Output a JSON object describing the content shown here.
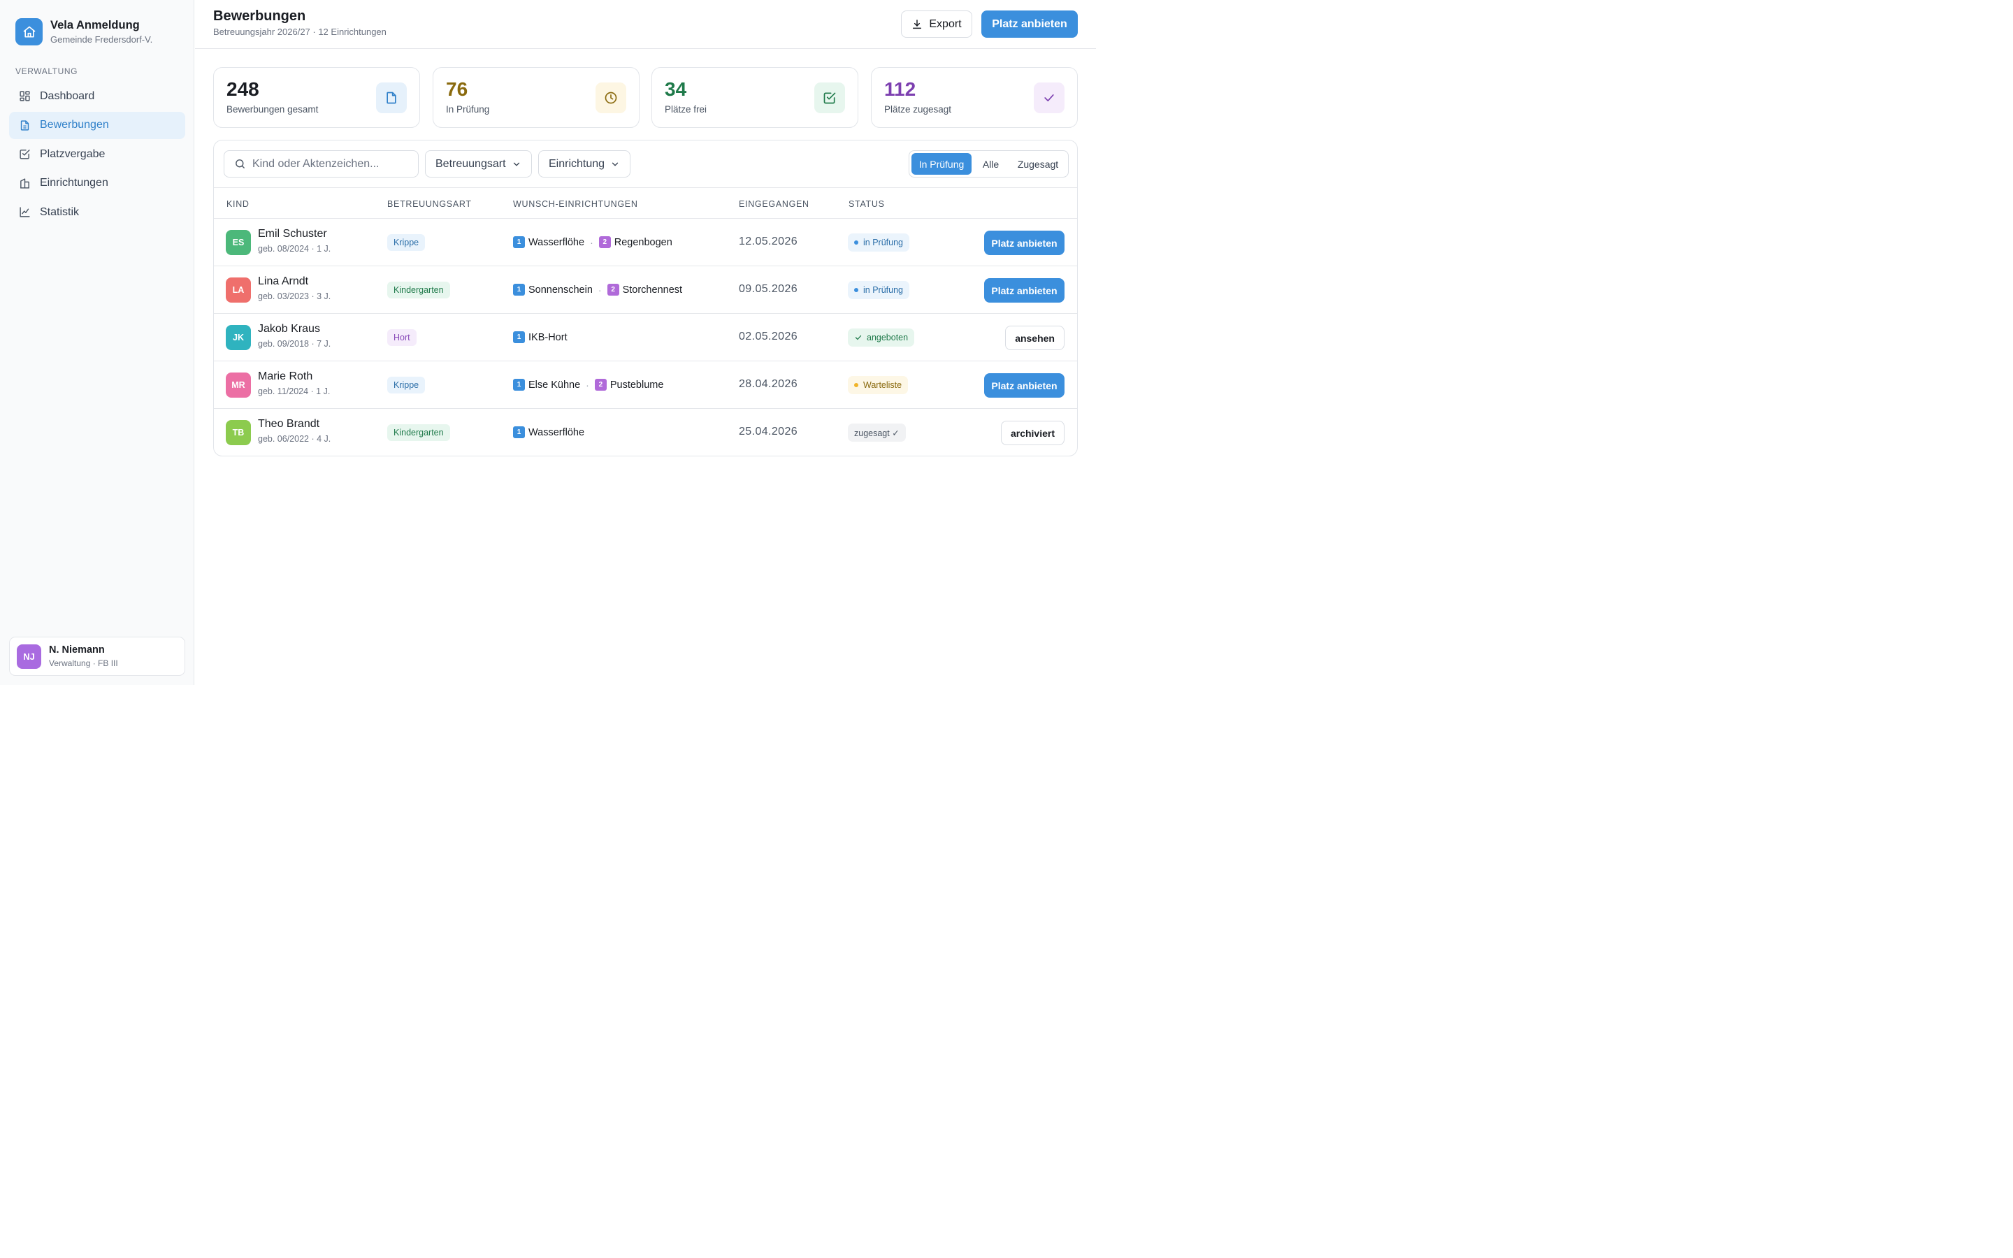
{
  "app": {
    "title": "Vela Anmeldung",
    "subtitle": "Gemeinde Fredersdorf-V.",
    "brand_color": "#3b8fdd"
  },
  "sidebar": {
    "section_label": "VERWALTUNG",
    "items": [
      {
        "label": "Dashboard",
        "icon": "dashboard-icon"
      },
      {
        "label": "Bewerbungen",
        "icon": "document-icon",
        "active": true
      },
      {
        "label": "Platzvergabe",
        "icon": "checkbox-icon"
      },
      {
        "label": "Einrichtungen",
        "icon": "building-icon"
      },
      {
        "label": "Statistik",
        "icon": "chart-icon"
      }
    ],
    "user": {
      "initials": "NJ",
      "name": "N. Niemann",
      "role": "Verwaltung · FB III"
    }
  },
  "header": {
    "title": "Bewerbungen",
    "subtitle": "Betreuungsjahr 2026/27 · 12 Einrichtungen",
    "export_label": "Export",
    "primary_label": "Platz anbieten"
  },
  "stats": [
    {
      "value": "248",
      "label": "Bewerbungen gesamt",
      "color": "#1a1d23",
      "icon": "document-icon"
    },
    {
      "value": "76",
      "label": "In Prüfung",
      "color": "#8a6a0e",
      "icon": "clock-icon"
    },
    {
      "value": "34",
      "label": "Plätze frei",
      "color": "#1f7a4a",
      "icon": "checkbox-icon"
    },
    {
      "value": "112",
      "label": "Plätze zugesagt",
      "color": "#7c3fb0",
      "icon": "check-icon"
    }
  ],
  "filters": {
    "search_placeholder": "Kind oder Aktenzeichen...",
    "dropdown_care": "Betreuungsart",
    "dropdown_facility": "Einrichtung",
    "segments": [
      "In Prüfung",
      "Alle",
      "Zugesagt"
    ],
    "active_segment": "In Prüfung"
  },
  "table": {
    "columns": [
      "KIND",
      "BETREUUNGSART",
      "WUNSCH-EINRICHTUNGEN",
      "EINGEGANGEN",
      "STATUS"
    ],
    "rows": [
      {
        "initials": "ES",
        "avatar_color": "#4cb87a",
        "name": "Emil Schuster",
        "sub": "geb. 08/2024 · 1 J.",
        "care": "Krippe",
        "care_kind": "krippe",
        "wish1": "Wasserflöhe",
        "wish2": "Regenbogen",
        "date": "12.05.2026",
        "status": "in Prüfung",
        "status_kind": "pruef",
        "action": "Platz anbieten",
        "action_kind": "primary"
      },
      {
        "initials": "LA",
        "avatar_color": "#ef6f6c",
        "name": "Lina Arndt",
        "sub": "geb. 03/2023 · 3 J.",
        "care": "Kindergarten",
        "care_kind": "kiga",
        "wish1": "Sonnenschein",
        "wish2": "Storchennest",
        "date": "09.05.2026",
        "status": "in Prüfung",
        "status_kind": "pruef",
        "action": "Platz anbieten",
        "action_kind": "primary"
      },
      {
        "initials": "JK",
        "avatar_color": "#2fb3bf",
        "name": "Jakob Kraus",
        "sub": "geb. 09/2018 · 7 J.",
        "care": "Hort",
        "care_kind": "hort",
        "wish1": "IKB-Hort",
        "wish2": "",
        "date": "02.05.2026",
        "status": "angeboten",
        "status_kind": "angeb",
        "action": "ansehen",
        "action_kind": "outline"
      },
      {
        "initials": "MR",
        "avatar_color": "#ec6fa4",
        "name": "Marie Roth",
        "sub": "geb. 11/2024 · 1 J.",
        "care": "Krippe",
        "care_kind": "krippe",
        "wish1": "Else Kühne",
        "wish2": "Pusteblume",
        "date": "28.04.2026",
        "status": "Warteliste",
        "status_kind": "warte",
        "action": "Platz anbieten",
        "action_kind": "primary"
      },
      {
        "initials": "TB",
        "avatar_color": "#8ccb4e",
        "name": "Theo Brandt",
        "sub": "geb. 06/2022 · 4 J.",
        "care": "Kindergarten",
        "care_kind": "kiga",
        "wish1": "Wasserflöhe",
        "wish2": "",
        "date": "25.04.2026",
        "status": "zugesagt ✓",
        "status_kind": "zuges",
        "action": "archiviert",
        "action_kind": "outline"
      }
    ]
  }
}
